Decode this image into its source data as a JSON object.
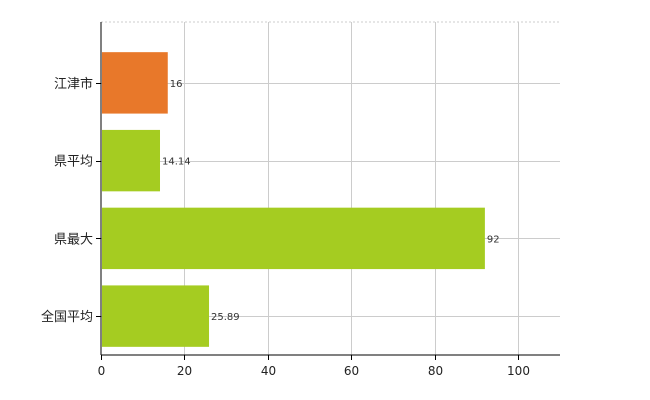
{
  "chart_data": {
    "type": "bar",
    "orientation": "horizontal",
    "categories": [
      "江津市",
      "県平均",
      "県最大",
      "全国平均"
    ],
    "values": [
      16,
      14.14,
      92,
      25.89
    ],
    "value_labels": [
      "16",
      "14.14",
      "92",
      "25.89"
    ],
    "xlim": [
      0,
      110
    ],
    "xticks": [
      0,
      20,
      40,
      60,
      80,
      100
    ],
    "xtick_labels": [
      "0",
      "20",
      "40",
      "60",
      "80",
      "100"
    ],
    "grid": true,
    "legend": "none",
    "colors": {
      "highlight": "#e8782a",
      "default": "#a5cc21",
      "grid": "#cccccc",
      "axis": "#000000"
    },
    "highlight_index": 0
  }
}
